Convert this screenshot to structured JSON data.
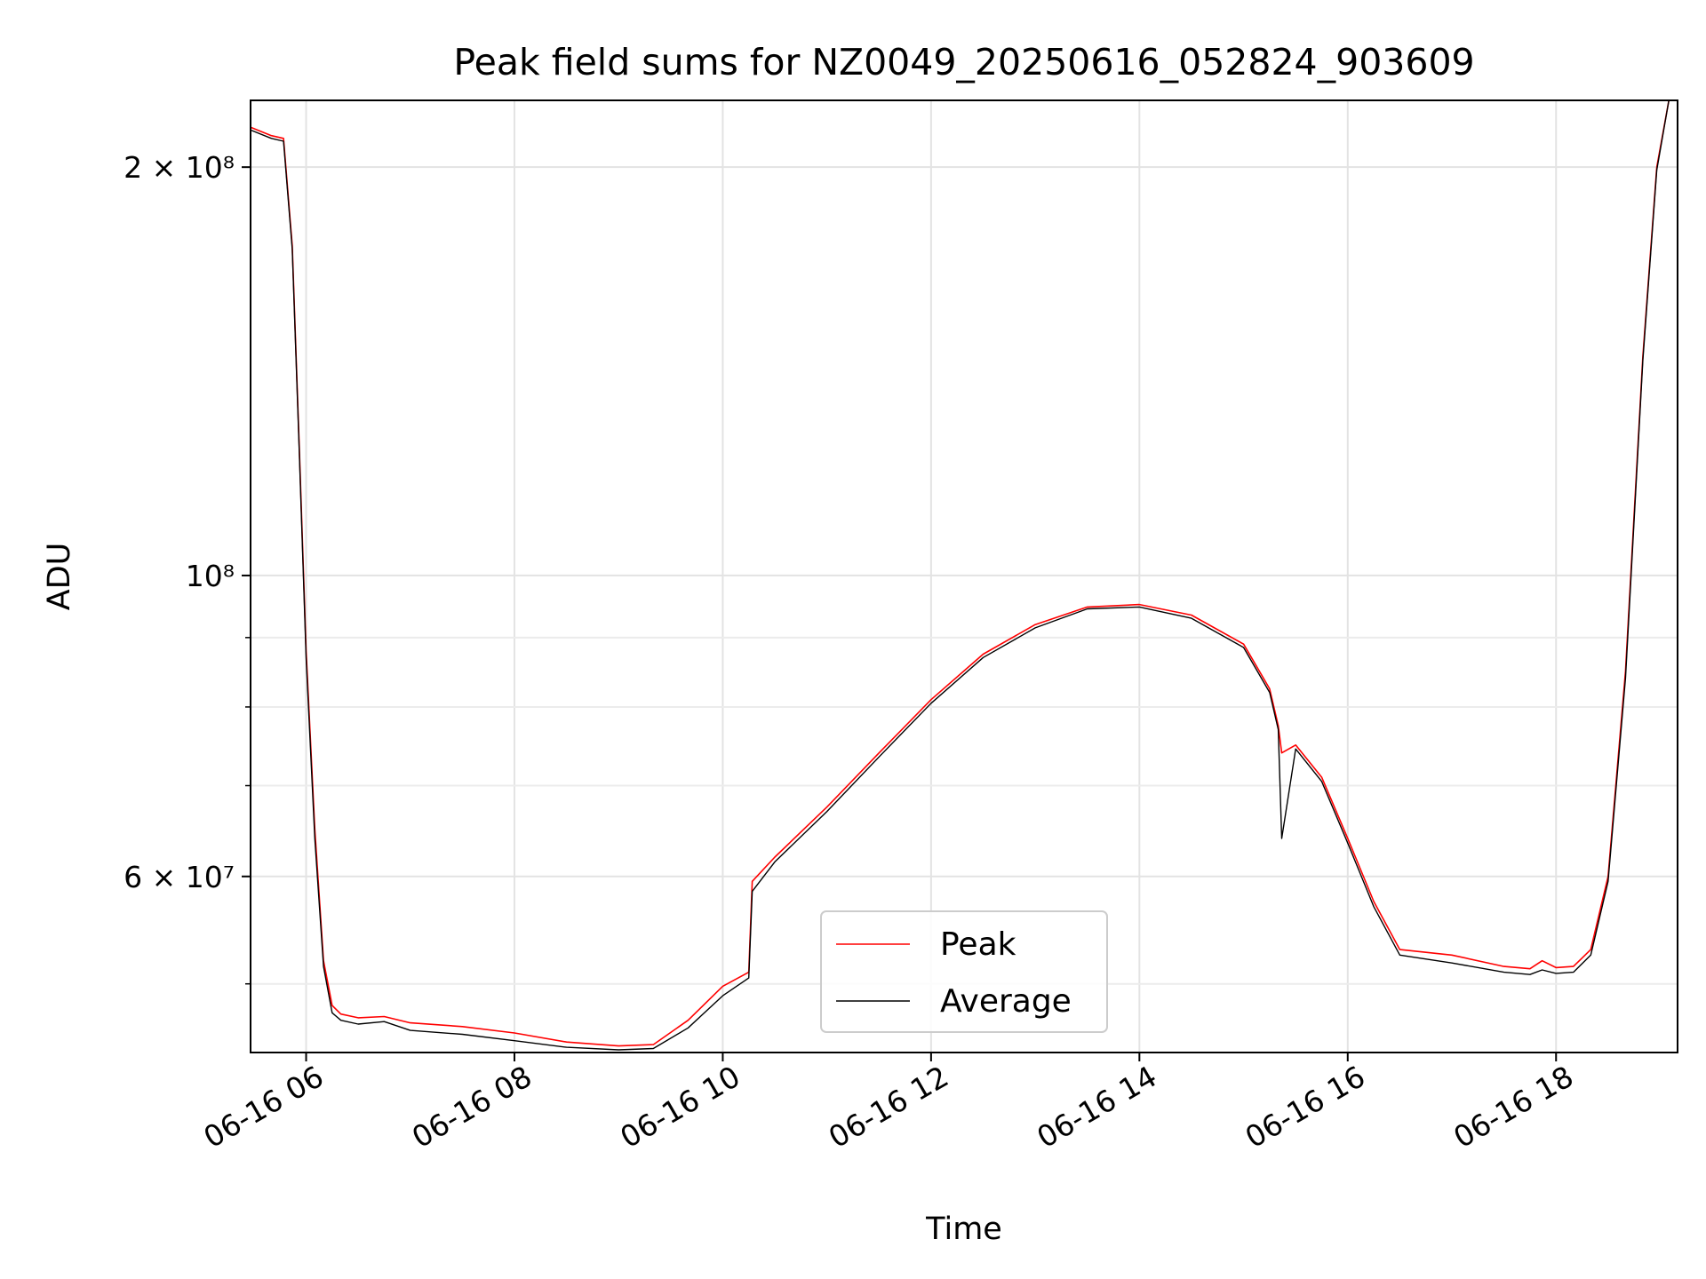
{
  "chart_data": {
    "type": "line",
    "title": "Peak field sums for NZ0049_20250616_052824_903609",
    "xlabel": "Time",
    "ylabel": "ADU",
    "y_scale": "log",
    "grid": true,
    "legend_position": "lower center",
    "x_range": [
      "2025-06-16 05:28",
      "2025-06-16 19:10"
    ],
    "ylim": [
      44500000,
      224000000
    ],
    "x_ticks": [
      {
        "value": "2025-06-16 06:00",
        "label": "06-16 06"
      },
      {
        "value": "2025-06-16 08:00",
        "label": "06-16 08"
      },
      {
        "value": "2025-06-16 10:00",
        "label": "06-16 10"
      },
      {
        "value": "2025-06-16 12:00",
        "label": "06-16 12"
      },
      {
        "value": "2025-06-16 14:00",
        "label": "06-16 14"
      },
      {
        "value": "2025-06-16 16:00",
        "label": "06-16 16"
      },
      {
        "value": "2025-06-16 18:00",
        "label": "06-16 18"
      }
    ],
    "y_major_ticks": [
      {
        "value": 200000000,
        "label": "2 × 10⁸"
      },
      {
        "value": 100000000,
        "label": "10⁸"
      },
      {
        "value": 60000000,
        "label": "6 × 10⁷"
      }
    ],
    "y_minor_ticks": [
      50000000,
      70000000,
      80000000,
      90000000
    ],
    "series": [
      {
        "name": "Peak",
        "color": "#ff0000",
        "x": [
          "2025-06-16 05:28",
          "2025-06-16 05:40",
          "2025-06-16 05:47",
          "2025-06-16 05:52",
          "2025-06-16 05:56",
          "2025-06-16 06:00",
          "2025-06-16 06:05",
          "2025-06-16 06:10",
          "2025-06-16 06:15",
          "2025-06-16 06:20",
          "2025-06-16 06:30",
          "2025-06-16 06:45",
          "2025-06-16 07:00",
          "2025-06-16 07:30",
          "2025-06-16 08:00",
          "2025-06-16 08:30",
          "2025-06-16 09:00",
          "2025-06-16 09:20",
          "2025-06-16 09:40",
          "2025-06-16 10:00",
          "2025-06-16 10:15",
          "2025-06-16 10:17",
          "2025-06-16 10:30",
          "2025-06-16 11:00",
          "2025-06-16 11:30",
          "2025-06-16 12:00",
          "2025-06-16 12:30",
          "2025-06-16 13:00",
          "2025-06-16 13:30",
          "2025-06-16 14:00",
          "2025-06-16 14:30",
          "2025-06-16 15:00",
          "2025-06-16 15:15",
          "2025-06-16 15:20",
          "2025-06-16 15:22",
          "2025-06-16 15:30",
          "2025-06-16 15:45",
          "2025-06-16 16:00",
          "2025-06-16 16:15",
          "2025-06-16 16:30",
          "2025-06-16 17:00",
          "2025-06-16 17:30",
          "2025-06-16 17:45",
          "2025-06-16 17:52",
          "2025-06-16 18:00",
          "2025-06-16 18:10",
          "2025-06-16 18:20",
          "2025-06-16 18:30",
          "2025-06-16 18:40",
          "2025-06-16 18:50",
          "2025-06-16 18:58",
          "2025-06-16 19:05"
        ],
        "y": [
          214000000,
          211000000,
          210000000,
          175000000,
          125000000,
          88000000,
          65000000,
          52000000,
          48200000,
          47500000,
          47200000,
          47300000,
          46800000,
          46500000,
          46000000,
          45300000,
          45000000,
          45100000,
          47000000,
          49800000,
          51000000,
          59500000,
          62000000,
          67500000,
          74000000,
          81000000,
          87500000,
          92000000,
          94800000,
          95200000,
          93500000,
          89000000,
          82500000,
          77500000,
          74000000,
          75000000,
          71000000,
          64000000,
          57500000,
          53000000,
          52500000,
          51500000,
          51300000,
          52000000,
          51400000,
          51500000,
          53000000,
          60000000,
          85000000,
          145000000,
          200000000,
          224000000
        ]
      },
      {
        "name": "Average",
        "color": "#000000",
        "x": [
          "2025-06-16 05:28",
          "2025-06-16 05:40",
          "2025-06-16 05:47",
          "2025-06-16 05:52",
          "2025-06-16 05:56",
          "2025-06-16 06:00",
          "2025-06-16 06:05",
          "2025-06-16 06:10",
          "2025-06-16 06:15",
          "2025-06-16 06:20",
          "2025-06-16 06:30",
          "2025-06-16 06:45",
          "2025-06-16 07:00",
          "2025-06-16 07:30",
          "2025-06-16 08:00",
          "2025-06-16 08:30",
          "2025-06-16 09:00",
          "2025-06-16 09:20",
          "2025-06-16 09:40",
          "2025-06-16 10:00",
          "2025-06-16 10:15",
          "2025-06-16 10:17",
          "2025-06-16 10:30",
          "2025-06-16 11:00",
          "2025-06-16 11:30",
          "2025-06-16 12:00",
          "2025-06-16 12:30",
          "2025-06-16 13:00",
          "2025-06-16 13:30",
          "2025-06-16 14:00",
          "2025-06-16 14:30",
          "2025-06-16 15:00",
          "2025-06-16 15:15",
          "2025-06-16 15:20",
          "2025-06-16 15:22",
          "2025-06-16 15:30",
          "2025-06-16 15:45",
          "2025-06-16 16:00",
          "2025-06-16 16:15",
          "2025-06-16 16:30",
          "2025-06-16 17:00",
          "2025-06-16 17:30",
          "2025-06-16 17:45",
          "2025-06-16 17:52",
          "2025-06-16 18:00",
          "2025-06-16 18:10",
          "2025-06-16 18:20",
          "2025-06-16 18:30",
          "2025-06-16 18:40",
          "2025-06-16 18:50",
          "2025-06-16 18:58",
          "2025-06-16 19:05"
        ],
        "y": [
          213000000,
          210000000,
          209000000,
          174000000,
          124000000,
          87000000,
          64000000,
          51500000,
          47600000,
          47000000,
          46700000,
          46900000,
          46200000,
          45900000,
          45400000,
          44900000,
          44700000,
          44800000,
          46400000,
          49000000,
          50500000,
          58500000,
          61500000,
          67000000,
          73500000,
          80500000,
          87000000,
          91500000,
          94500000,
          94800000,
          93000000,
          88500000,
          82000000,
          77000000,
          64000000,
          74500000,
          70500000,
          63500000,
          57000000,
          52500000,
          51800000,
          51000000,
          50800000,
          51200000,
          50900000,
          51000000,
          52500000,
          59500000,
          84000000,
          144000000,
          199000000,
          224000000
        ]
      }
    ]
  }
}
